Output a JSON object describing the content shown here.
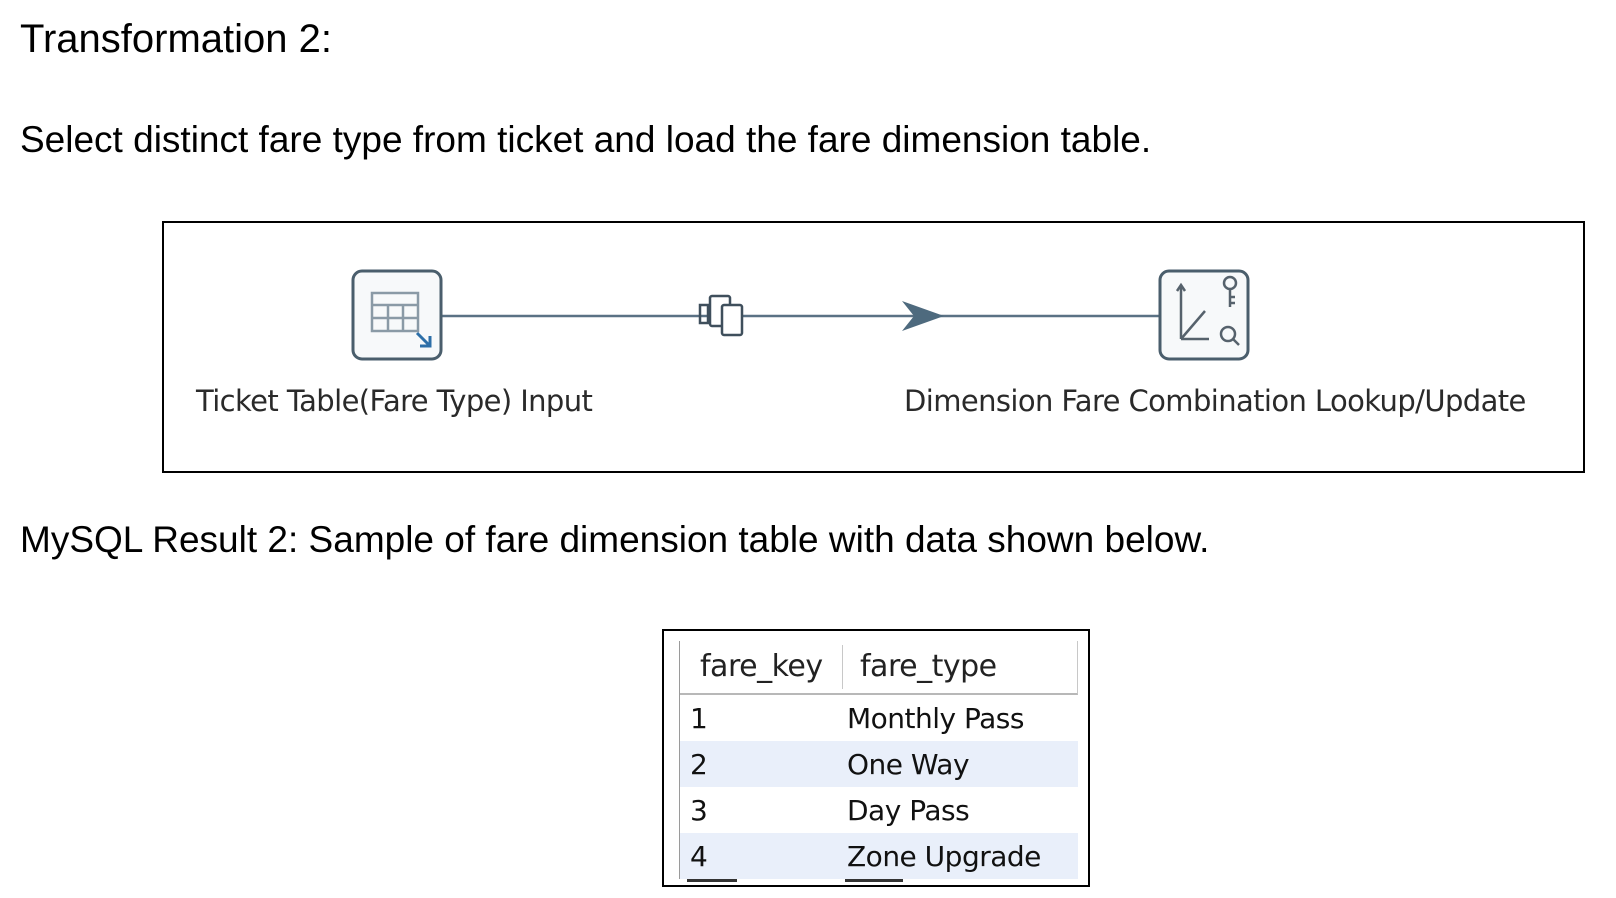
{
  "heading": "Transformation 2:",
  "description": "Select distinct fare type from ticket and load the fare dimension table.",
  "flow": {
    "steps": [
      {
        "label": "Ticket Table(Fare Type) Input",
        "icon": "table-input-icon"
      },
      {
        "label": "Dimension Fare Combination Lookup/Update",
        "icon": "combination-lookup-icon"
      }
    ],
    "hop_icon": "copy-rows-icon"
  },
  "result_caption": "MySQL Result 2: Sample of fare dimension table with data shown below.",
  "table": {
    "columns": [
      "fare_key",
      "fare_type"
    ],
    "rows": [
      [
        "1",
        "Monthly Pass"
      ],
      [
        "2",
        "One Way"
      ],
      [
        "3",
        "Day Pass"
      ],
      [
        "4",
        "Zone Upgrade"
      ]
    ],
    "stripe_color": "#e9effa"
  }
}
